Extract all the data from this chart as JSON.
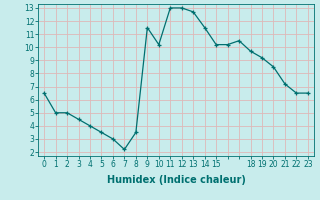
{
  "x": [
    0,
    1,
    2,
    3,
    4,
    5,
    6,
    7,
    8,
    9,
    10,
    11,
    12,
    13,
    14,
    15,
    16,
    17,
    18,
    19,
    20,
    21,
    22,
    23
  ],
  "y": [
    6.5,
    5.0,
    5.0,
    4.5,
    4.0,
    3.5,
    3.0,
    2.2,
    3.5,
    11.5,
    10.2,
    13.0,
    13.0,
    12.7,
    11.5,
    10.2,
    10.2,
    10.5,
    9.7,
    9.2,
    8.5,
    7.2,
    6.5,
    6.5
  ],
  "xlim": [
    -0.5,
    23.5
  ],
  "ylim": [
    1.7,
    13.3
  ],
  "xticks": [
    0,
    1,
    2,
    3,
    4,
    5,
    6,
    7,
    8,
    9,
    10,
    11,
    12,
    13,
    14,
    15,
    18,
    19,
    20,
    21,
    22,
    23
  ],
  "yticks": [
    2,
    3,
    4,
    5,
    6,
    7,
    8,
    9,
    10,
    11,
    12,
    13
  ],
  "xlabel": "Humidex (Indice chaleur)",
  "line_color": "#007070",
  "marker": "+",
  "background_color": "#c8ecec",
  "grid_color": "#deb8b8",
  "tick_label_color": "#007070",
  "axis_label_color": "#007070",
  "font_size": 5.5,
  "label_font_size": 7
}
